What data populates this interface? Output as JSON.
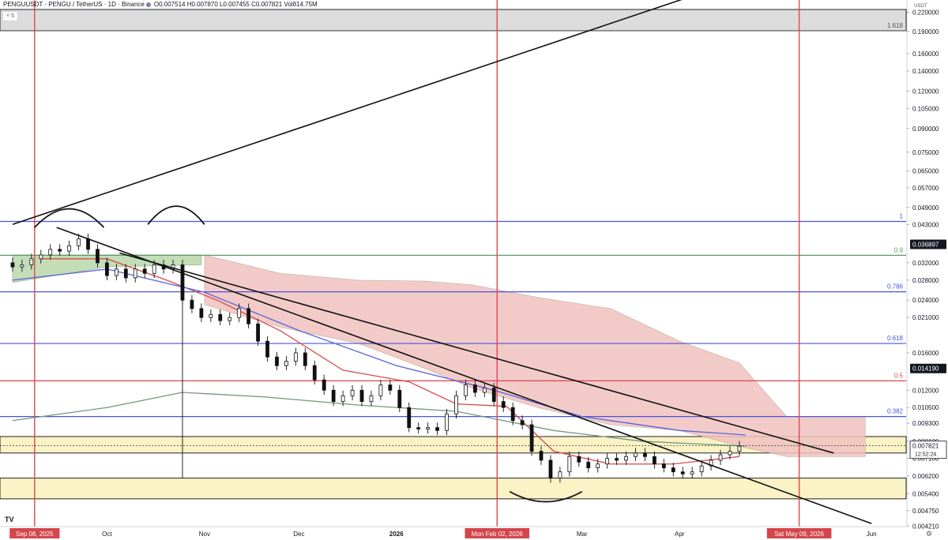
{
  "header": {
    "symbol": "PENGUUSDT · PENGU / TetherUS · 1D · Binance",
    "ohlc": "O0.007514 H0.007870 L0.007455 C0.007821 Vol814.75M",
    "collapse_label": "5"
  },
  "axis": {
    "currency": "USDT",
    "corner_icon": "settings-icon",
    "corner_glyph": "⚙",
    "logo_glyph": "TV"
  },
  "colors": {
    "vertical_marker": "#e0484b",
    "fib_blue": "#4a53d8",
    "fib_red": "#d8454f",
    "fib_green": "#5b9a68",
    "zone_yellow": "#fbf2c6",
    "zone_grey": "#dcdcdc",
    "cloud_green": "#b9d8ab",
    "cloud_red": "#f0c3c0",
    "ma_red": "#d84a48",
    "ma_blue": "#5b63d6",
    "ma_green": "#6f9a79",
    "price_tag_bg": "#131722",
    "date_tag_bg": "#d4464b"
  },
  "chart_data": {
    "type": "candlestick",
    "title": "PENGUUSDT · PENGU / TetherUS · 1D · Binance",
    "y_scale": "log",
    "ylim": [
      0.0042,
      0.225
    ],
    "y_ticks": [
      0.2201,
      0.19,
      0.16,
      0.14,
      0.12,
      0.105,
      0.09,
      0.075,
      0.065,
      0.057,
      0.049,
      0.043,
      0.032,
      0.028,
      0.024,
      0.021,
      0.016,
      0.012,
      0.0105,
      0.0093,
      0.0081,
      0.0071,
      0.0062,
      0.0054,
      0.00475,
      0.00421
    ],
    "y_tick_labels": [
      "0.220000",
      "0.190000",
      "0.160000",
      "0.140000",
      "0.120000",
      "0.105000",
      "0.090000",
      "0.075000",
      "0.065000",
      "0.057000",
      "0.049000",
      "0.043000",
      "0.032000",
      "0.028000",
      "0.024000",
      "0.021000",
      "0.016000",
      "0.012000",
      "0.010500",
      "0.009300",
      "0.008100",
      "0.007100",
      "0.006200",
      "0.005400",
      "0.004750",
      "0.004210"
    ],
    "x_labels": [
      {
        "date": "2025-09-08",
        "label": "Sep 08, 2025",
        "highlight": true
      },
      {
        "date": "2025-10-01",
        "label": "Oct"
      },
      {
        "date": "2025-11-01",
        "label": "Nov"
      },
      {
        "date": "2025-12-01",
        "label": "Dec"
      },
      {
        "date": "2026-01-01",
        "label": "2026",
        "bold": true
      },
      {
        "date": "2026-02-02",
        "label": "Mon Feb 02, 2026",
        "highlight": true
      },
      {
        "date": "2026-03-01",
        "label": "Mar"
      },
      {
        "date": "2026-04-01",
        "label": "Apr"
      },
      {
        "date": "2026-05-09",
        "label": "Sat May 09, 2026",
        "highlight": true
      },
      {
        "date": "2026-06-01",
        "label": "Jun"
      }
    ],
    "last_price": {
      "value": 0.007821,
      "label": "0.007821",
      "countdown": "12:52:24"
    },
    "price_tags": [
      {
        "value": 0.036897,
        "label": "0.036897"
      },
      {
        "value": 0.01419,
        "label": "0.014190"
      }
    ],
    "vertical_markers": [
      "2025-09-08",
      "2026-02-02",
      "2026-05-09"
    ],
    "fib_levels": [
      {
        "ratio": "1.618",
        "price": 0.191,
        "color": "grey"
      },
      {
        "ratio": "1",
        "price": 0.044,
        "color": "blue"
      },
      {
        "ratio": "0.9",
        "price": 0.0339,
        "color": "green"
      },
      {
        "ratio": "0.786",
        "price": 0.0256,
        "color": "blue"
      },
      {
        "ratio": "0.618",
        "price": 0.0172,
        "color": "blue"
      },
      {
        "ratio": "0.5",
        "price": 0.0129,
        "color": "red"
      },
      {
        "ratio": "0.382",
        "price": 0.0098,
        "color": "blue"
      }
    ],
    "zones": [
      {
        "from": 0.191,
        "to": 0.225,
        "color": "grey"
      },
      {
        "from": 0.0074,
        "to": 0.0084,
        "color": "yellow"
      },
      {
        "from": 0.0052,
        "to": 0.0061,
        "color": "yellow"
      }
    ],
    "trendlines": [
      {
        "from": [
          "2025-09-01",
          0.043
        ],
        "to": [
          "2026-04-10",
          0.26
        ]
      },
      {
        "from": [
          "2025-09-15",
          0.042
        ],
        "to": [
          "2026-06-01",
          0.0043
        ]
      },
      {
        "from": [
          "2025-10-05",
          0.0345
        ],
        "to": [
          "2026-05-20",
          0.0074
        ]
      }
    ],
    "candles": [
      [
        "2025-09-01",
        0.032,
        0.031
      ],
      [
        "2025-09-04",
        0.031,
        0.0315
      ],
      [
        "2025-09-07",
        0.0315,
        0.033
      ],
      [
        "2025-09-10",
        0.033,
        0.034
      ],
      [
        "2025-09-13",
        0.034,
        0.0355
      ],
      [
        "2025-09-16",
        0.0355,
        0.035
      ],
      [
        "2025-09-19",
        0.035,
        0.0365
      ],
      [
        "2025-09-22",
        0.0365,
        0.0385
      ],
      [
        "2025-09-25",
        0.0385,
        0.0355
      ],
      [
        "2025-09-28",
        0.0355,
        0.032
      ],
      [
        "2025-10-01",
        0.032,
        0.029
      ],
      [
        "2025-10-04",
        0.029,
        0.0305
      ],
      [
        "2025-10-07",
        0.0305,
        0.0285
      ],
      [
        "2025-10-10",
        0.0285,
        0.0305
      ],
      [
        "2025-10-13",
        0.0305,
        0.0295
      ],
      [
        "2025-10-16",
        0.0295,
        0.0315
      ],
      [
        "2025-10-19",
        0.0315,
        0.0305
      ],
      [
        "2025-10-22",
        0.0305,
        0.0315
      ],
      [
        "2025-10-25",
        0.0315,
        0.024
      ],
      [
        "2025-10-28",
        0.024,
        0.0225
      ],
      [
        "2025-10-31",
        0.0225,
        0.021
      ],
      [
        "2025-11-03",
        0.021,
        0.0215
      ],
      [
        "2025-11-06",
        0.0215,
        0.0205
      ],
      [
        "2025-11-09",
        0.0205,
        0.021
      ],
      [
        "2025-11-12",
        0.021,
        0.0225
      ],
      [
        "2025-11-15",
        0.0225,
        0.02
      ],
      [
        "2025-11-18",
        0.02,
        0.0175
      ],
      [
        "2025-11-21",
        0.0175,
        0.0155
      ],
      [
        "2025-11-24",
        0.0155,
        0.0145
      ],
      [
        "2025-11-27",
        0.0145,
        0.015
      ],
      [
        "2025-11-30",
        0.015,
        0.016
      ],
      [
        "2025-12-03",
        0.016,
        0.0145
      ],
      [
        "2025-12-06",
        0.0145,
        0.013
      ],
      [
        "2025-12-09",
        0.013,
        0.012
      ],
      [
        "2025-12-12",
        0.012,
        0.011
      ],
      [
        "2025-12-15",
        0.011,
        0.0115
      ],
      [
        "2025-12-18",
        0.0115,
        0.012
      ],
      [
        "2025-12-21",
        0.012,
        0.011
      ],
      [
        "2025-12-24",
        0.011,
        0.0115
      ],
      [
        "2025-12-27",
        0.0115,
        0.0125
      ],
      [
        "2025-12-30",
        0.0125,
        0.012
      ],
      [
        "2026-01-02",
        0.012,
        0.0105
      ],
      [
        "2026-01-05",
        0.0105,
        0.009
      ],
      [
        "2026-01-08",
        0.009,
        0.0089
      ],
      [
        "2026-01-11",
        0.0089,
        0.009
      ],
      [
        "2026-01-14",
        0.009,
        0.0088
      ],
      [
        "2026-01-17",
        0.0088,
        0.01
      ],
      [
        "2026-01-20",
        0.01,
        0.0115
      ],
      [
        "2026-01-23",
        0.0115,
        0.0125
      ],
      [
        "2026-01-26",
        0.0125,
        0.0118
      ],
      [
        "2026-01-29",
        0.0118,
        0.0122
      ],
      [
        "2026-02-01",
        0.0122,
        0.011
      ],
      [
        "2026-02-04",
        0.011,
        0.0105
      ],
      [
        "2026-02-07",
        0.0105,
        0.0095
      ],
      [
        "2026-02-10",
        0.0095,
        0.0092
      ],
      [
        "2026-02-13",
        0.0092,
        0.0075
      ],
      [
        "2026-02-16",
        0.0075,
        0.007
      ],
      [
        "2026-02-19",
        0.007,
        0.0061
      ],
      [
        "2026-02-22",
        0.0061,
        0.0064
      ],
      [
        "2026-02-25",
        0.0064,
        0.0072
      ],
      [
        "2026-02-28",
        0.0072,
        0.0069
      ],
      [
        "2026-03-03",
        0.0069,
        0.0066
      ],
      [
        "2026-03-06",
        0.0066,
        0.0068
      ],
      [
        "2026-03-09",
        0.0068,
        0.0071
      ],
      [
        "2026-03-12",
        0.0071,
        0.007
      ],
      [
        "2026-03-15",
        0.007,
        0.0072
      ],
      [
        "2026-03-18",
        0.0072,
        0.0074
      ],
      [
        "2026-03-21",
        0.0074,
        0.0072
      ],
      [
        "2026-03-24",
        0.0072,
        0.0068
      ],
      [
        "2026-03-27",
        0.0068,
        0.0066
      ],
      [
        "2026-03-30",
        0.0066,
        0.0064
      ],
      [
        "2026-04-02",
        0.0064,
        0.0063
      ],
      [
        "2026-04-05",
        0.0063,
        0.0064
      ],
      [
        "2026-04-08",
        0.0064,
        0.0067
      ],
      [
        "2026-04-11",
        0.0067,
        0.007
      ],
      [
        "2026-04-14",
        0.007,
        0.0073
      ],
      [
        "2026-04-17",
        0.0073,
        0.0075
      ],
      [
        "2026-04-20",
        0.0075,
        0.0078
      ]
    ],
    "moving_averages": [
      {
        "color": "red",
        "points": [
          [
            "2025-09-10",
            0.033
          ],
          [
            "2025-10-01",
            0.033
          ],
          [
            "2025-10-20",
            0.028
          ],
          [
            "2025-11-05",
            0.024
          ],
          [
            "2025-11-25",
            0.019
          ],
          [
            "2025-12-15",
            0.014
          ],
          [
            "2026-01-05",
            0.0128
          ],
          [
            "2026-01-20",
            0.0108
          ],
          [
            "2026-02-05",
            0.0106
          ],
          [
            "2026-02-20",
            0.0075
          ],
          [
            "2026-03-10",
            0.0068
          ],
          [
            "2026-03-30",
            0.0068
          ],
          [
            "2026-04-20",
            0.0072
          ]
        ]
      },
      {
        "color": "blue",
        "points": [
          [
            "2025-09-01",
            0.028
          ],
          [
            "2025-10-01",
            0.0305
          ],
          [
            "2025-11-01",
            0.0255
          ],
          [
            "2025-12-01",
            0.019
          ],
          [
            "2026-01-01",
            0.0145
          ],
          [
            "2026-02-01",
            0.012
          ],
          [
            "2026-03-01",
            0.0098
          ],
          [
            "2026-04-01",
            0.0088
          ],
          [
            "2026-04-22",
            0.0085
          ]
        ]
      },
      {
        "color": "green",
        "points": [
          [
            "2025-09-01",
            0.0095
          ],
          [
            "2025-10-01",
            0.0105
          ],
          [
            "2025-10-25",
            0.0118
          ],
          [
            "2025-11-20",
            0.0114
          ],
          [
            "2025-12-20",
            0.0107
          ],
          [
            "2026-01-20",
            0.0102
          ],
          [
            "2026-02-20",
            0.0088
          ],
          [
            "2026-03-20",
            0.0081
          ],
          [
            "2026-04-22",
            0.0078
          ]
        ]
      }
    ],
    "cloud": [
      [
        "2025-09-01",
        0.034,
        0.0275
      ],
      [
        "2025-10-01",
        0.034,
        0.031
      ],
      [
        "2025-10-31",
        0.034,
        0.0315
      ],
      [
        "2025-11-01",
        0.034,
        0.0232
      ],
      [
        "2025-11-25",
        0.0295,
        0.0195
      ],
      [
        "2025-12-20",
        0.028,
        0.0172
      ],
      [
        "2026-01-10",
        0.0278,
        0.0142
      ],
      [
        "2026-01-25",
        0.027,
        0.0122
      ],
      [
        "2026-02-15",
        0.0245,
        0.0105
      ],
      [
        "2026-03-10",
        0.0225,
        0.0092
      ],
      [
        "2026-04-01",
        0.0175,
        0.0088
      ],
      [
        "2026-04-20",
        0.0148,
        0.0078
      ],
      [
        "2026-05-05",
        0.0098,
        0.0072
      ],
      [
        "2026-05-30",
        0.0098,
        0.0072
      ]
    ]
  }
}
